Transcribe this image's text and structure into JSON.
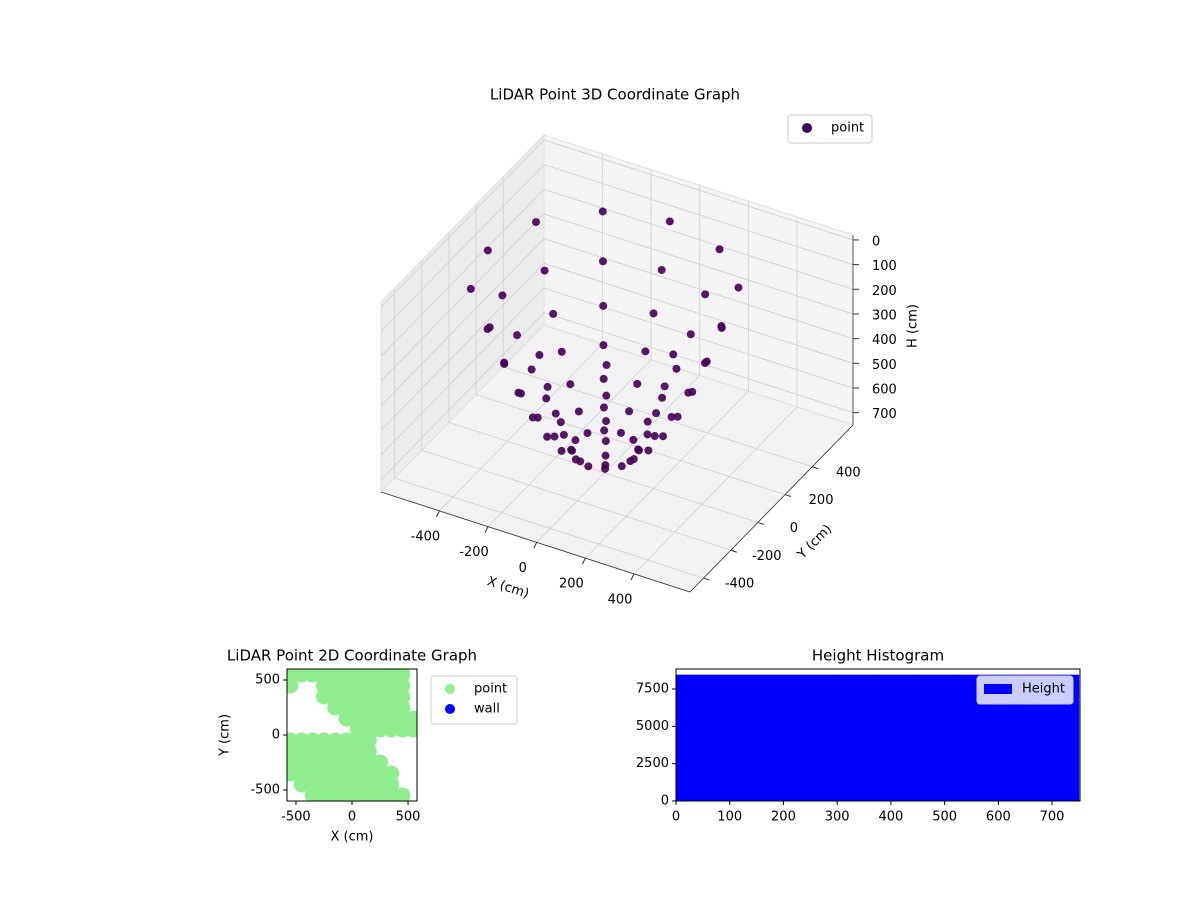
{
  "chart_data": [
    {
      "type": "scatter3d",
      "title": "LiDAR Point 3D Coordinate Graph",
      "xlabel": "X (cm)",
      "ylabel": "Y (cm)",
      "zlabel": "H (cm)",
      "xlim": [
        -640,
        630
      ],
      "ylim": [
        -500,
        700
      ],
      "zlim": [
        750,
        -20
      ],
      "xticks": [
        -400,
        -200,
        0,
        200,
        400
      ],
      "yticks": [
        -400,
        -200,
        0,
        200,
        400
      ],
      "zticks": [
        0,
        100,
        200,
        300,
        400,
        500,
        600,
        700
      ],
      "grid": true,
      "legend": "upper right",
      "series": [
        {
          "name": "point",
          "color": "#440154",
          "x": [
            480,
            420,
            360,
            300,
            240,
            180,
            120,
            416,
            364,
            312,
            260,
            208,
            156,
            104,
            240,
            210,
            180,
            150,
            120,
            90,
            60,
            0,
            0,
            0,
            0,
            0,
            0,
            0,
            -240,
            -210,
            -180,
            -150,
            -120,
            -90,
            -60,
            -416,
            -364,
            -312,
            -260,
            -208,
            -156,
            -104,
            -480,
            -420,
            -360,
            -300,
            -240,
            -180,
            -120,
            -416,
            -364,
            -312,
            -260,
            -208,
            -156,
            -104,
            -240,
            -210,
            -180,
            -150,
            -120,
            -90,
            -60,
            0,
            0,
            0,
            0,
            0,
            0,
            0,
            240,
            210,
            180,
            150,
            120,
            90,
            60,
            416,
            364,
            312,
            260,
            208,
            156,
            104
          ],
          "y": [
            0,
            0,
            0,
            0,
            0,
            0,
            0,
            240,
            210,
            180,
            150,
            120,
            90,
            60,
            416,
            364,
            312,
            260,
            208,
            156,
            104,
            480,
            420,
            360,
            300,
            240,
            180,
            120,
            416,
            364,
            312,
            260,
            208,
            156,
            104,
            240,
            210,
            180,
            150,
            120,
            90,
            60,
            0,
            0,
            0,
            0,
            0,
            0,
            0,
            -240,
            -210,
            -180,
            -150,
            -120,
            -90,
            -60,
            -416,
            -364,
            -312,
            -260,
            -208,
            -156,
            -104,
            -480,
            -420,
            -360,
            -300,
            -240,
            -180,
            -120,
            -416,
            -364,
            -312,
            -260,
            -208,
            -156,
            -104,
            -240,
            -210,
            -180,
            -150,
            -120,
            -90,
            -60
          ],
          "z": [
            2,
            165,
            307,
            427,
            525,
            602,
            656,
            2,
            165,
            307,
            427,
            525,
            602,
            656,
            2,
            165,
            307,
            427,
            525,
            602,
            656,
            2,
            165,
            307,
            427,
            525,
            602,
            656,
            2,
            165,
            307,
            427,
            525,
            602,
            656,
            2,
            165,
            307,
            427,
            525,
            602,
            656,
            2,
            165,
            307,
            427,
            525,
            602,
            656,
            2,
            165,
            307,
            427,
            525,
            602,
            656,
            2,
            165,
            307,
            427,
            525,
            602,
            656,
            2,
            165,
            307,
            427,
            525,
            602,
            656,
            2,
            165,
            307,
            427,
            525,
            602,
            656,
            2,
            165,
            307,
            427,
            525,
            602,
            656
          ]
        }
      ]
    },
    {
      "type": "scatter",
      "title": "LiDAR Point 2D Coordinate Graph",
      "xlabel": "X (cm)",
      "ylabel": "Y (cm)",
      "xlim": [
        -580,
        580
      ],
      "ylim": [
        -600,
        600
      ],
      "xticks": [
        -500,
        0,
        500
      ],
      "yticks": [
        -500,
        0,
        500
      ],
      "legend": "outside right",
      "series": [
        {
          "name": "point",
          "color": "#90ee90",
          "x": [
            -550,
            -450,
            -350,
            -250,
            -150,
            -50,
            50,
            150,
            250,
            350,
            450,
            -550,
            -250,
            -150,
            -50,
            50,
            150,
            250,
            350,
            450,
            -250,
            -150,
            -50,
            50,
            150,
            250,
            350,
            450,
            -150,
            -50,
            50,
            150,
            250,
            350,
            450,
            -50,
            50,
            150,
            250,
            350,
            450,
            550,
            50,
            150,
            250,
            350,
            450,
            550,
            -550,
            -450,
            -350,
            -250,
            -150,
            -50,
            50,
            150,
            -550,
            -450,
            -350,
            -250,
            -150,
            -50,
            50,
            150,
            -550,
            -450,
            -350,
            -250,
            -150,
            -50,
            50,
            150,
            250,
            -550,
            -450,
            -350,
            -250,
            -150,
            -50,
            50,
            150,
            250,
            350,
            -450,
            -350,
            -250,
            -150,
            -50,
            50,
            150,
            250,
            350,
            -350,
            -250,
            -150,
            -50,
            50,
            150,
            250,
            350,
            450
          ],
          "y": [
            550,
            550,
            550,
            550,
            550,
            550,
            550,
            550,
            550,
            550,
            550,
            450,
            450,
            450,
            450,
            450,
            450,
            450,
            450,
            450,
            350,
            350,
            350,
            350,
            350,
            350,
            350,
            350,
            250,
            250,
            250,
            250,
            250,
            250,
            250,
            150,
            150,
            150,
            150,
            150,
            150,
            150,
            50,
            50,
            50,
            50,
            50,
            50,
            -50,
            -50,
            -50,
            -50,
            -50,
            -50,
            -50,
            -50,
            -150,
            -150,
            -150,
            -150,
            -150,
            -150,
            -150,
            -150,
            -250,
            -250,
            -250,
            -250,
            -250,
            -250,
            -250,
            -250,
            -250,
            -350,
            -350,
            -350,
            -350,
            -350,
            -350,
            -350,
            -350,
            -350,
            -350,
            -450,
            -450,
            -450,
            -450,
            -450,
            -450,
            -450,
            -450,
            -450,
            -550,
            -550,
            -550,
            -550,
            -550,
            -550,
            -550,
            -550,
            -550
          ]
        },
        {
          "name": "wall",
          "color": "#0000ff",
          "x": [],
          "y": []
        }
      ]
    },
    {
      "type": "histogram",
      "title": "Height Histogram",
      "xlim": [
        0,
        752
      ],
      "ylim": [
        0,
        8840
      ],
      "xticks": [
        0,
        100,
        200,
        300,
        400,
        500,
        600,
        700
      ],
      "yticks": [
        0,
        2500,
        5000,
        7500
      ],
      "legend": "upper right",
      "series": [
        {
          "name": "Height",
          "color": "#0000ff",
          "bins": [
            0,
            75,
            150,
            225,
            300,
            375,
            450,
            525,
            600,
            675,
            750
          ],
          "counts": [
            8440,
            8440,
            8440,
            8440,
            8440,
            8440,
            8440,
            8440,
            8440,
            8440
          ]
        }
      ]
    }
  ]
}
